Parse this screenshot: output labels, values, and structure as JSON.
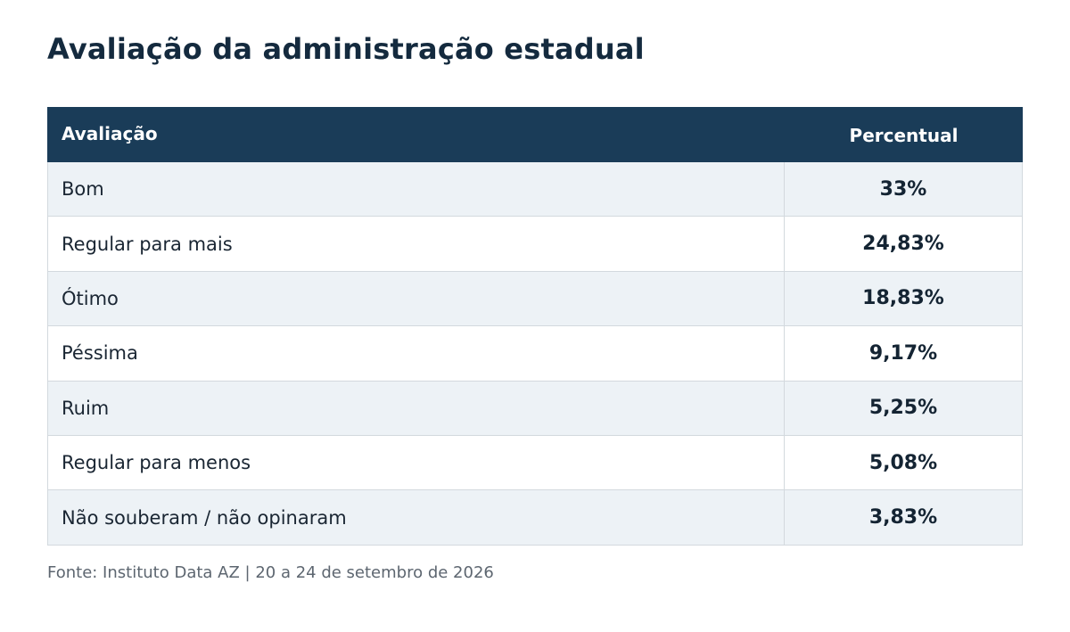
{
  "chart_data": {
    "type": "table",
    "title": "Avaliação da administração estadual",
    "columns": [
      "Avaliação",
      "Percentual"
    ],
    "rows": [
      {
        "label": "Bom",
        "value": "33%"
      },
      {
        "label": "Regular para mais",
        "value": "24,83%"
      },
      {
        "label": "Ótimo",
        "value": "18,83%"
      },
      {
        "label": "Péssima",
        "value": "9,17%"
      },
      {
        "label": "Ruim",
        "value": "5,25%"
      },
      {
        "label": "Regular para menos",
        "value": "5,08%"
      },
      {
        "label": "Não souberam / não opinaram",
        "value": "3,83%"
      }
    ],
    "values": [
      33,
      24.83,
      18.83,
      9.17,
      5.25,
      5.08,
      3.83
    ],
    "source": "Fonte: Instituto Data AZ | 20 a 24 de setembro de 2026"
  },
  "colors": {
    "header_bg": "#1a3c58",
    "row_alt_bg": "#edf2f6",
    "row_bg": "#ffffff",
    "title": "#142a3e"
  }
}
